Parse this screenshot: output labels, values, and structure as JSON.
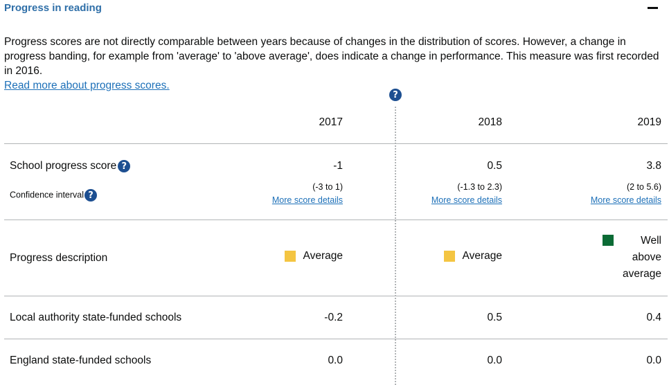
{
  "section": {
    "title": "Progress in reading",
    "collapse_icon": "minus-icon"
  },
  "intro": {
    "text": "Progress scores are not directly comparable between years because of changes in the distribution of scores. However, a change in progress banding, for example from 'average' to 'above average', does indicate a change in performance. This measure was first recorded in 2016.",
    "link": "Read more about progress scores."
  },
  "help_glyph": "?",
  "years": [
    "2017",
    "2018",
    "2019"
  ],
  "rows": {
    "school_progress": {
      "label": "School progress score",
      "values": [
        "-1",
        "0.5",
        "3.8"
      ]
    },
    "confidence": {
      "label": "Confidence interval",
      "values": [
        "(-3 to 1)",
        "(-1.3 to 2.3)",
        "(2 to 5.6)"
      ],
      "link": "More score details"
    },
    "progress_description": {
      "label": "Progress description",
      "values": [
        "Average",
        "Average",
        "Well above average"
      ],
      "value_lines_2019": [
        "Well",
        "above",
        "average"
      ],
      "colors": {
        "average": "#f4c542",
        "well_above_average": "#0b6b35"
      }
    },
    "local_authority": {
      "label": "Local authority state-funded schools",
      "values": [
        "-0.2",
        "0.5",
        "0.4"
      ]
    },
    "england": {
      "label": "England state-funded schools",
      "values": [
        "0.0",
        "0.0",
        "0.0"
      ]
    }
  },
  "colors": {
    "title": "#2f6fa8",
    "link": "#1d70b8",
    "help_icon_bg": "#1d4f91"
  }
}
